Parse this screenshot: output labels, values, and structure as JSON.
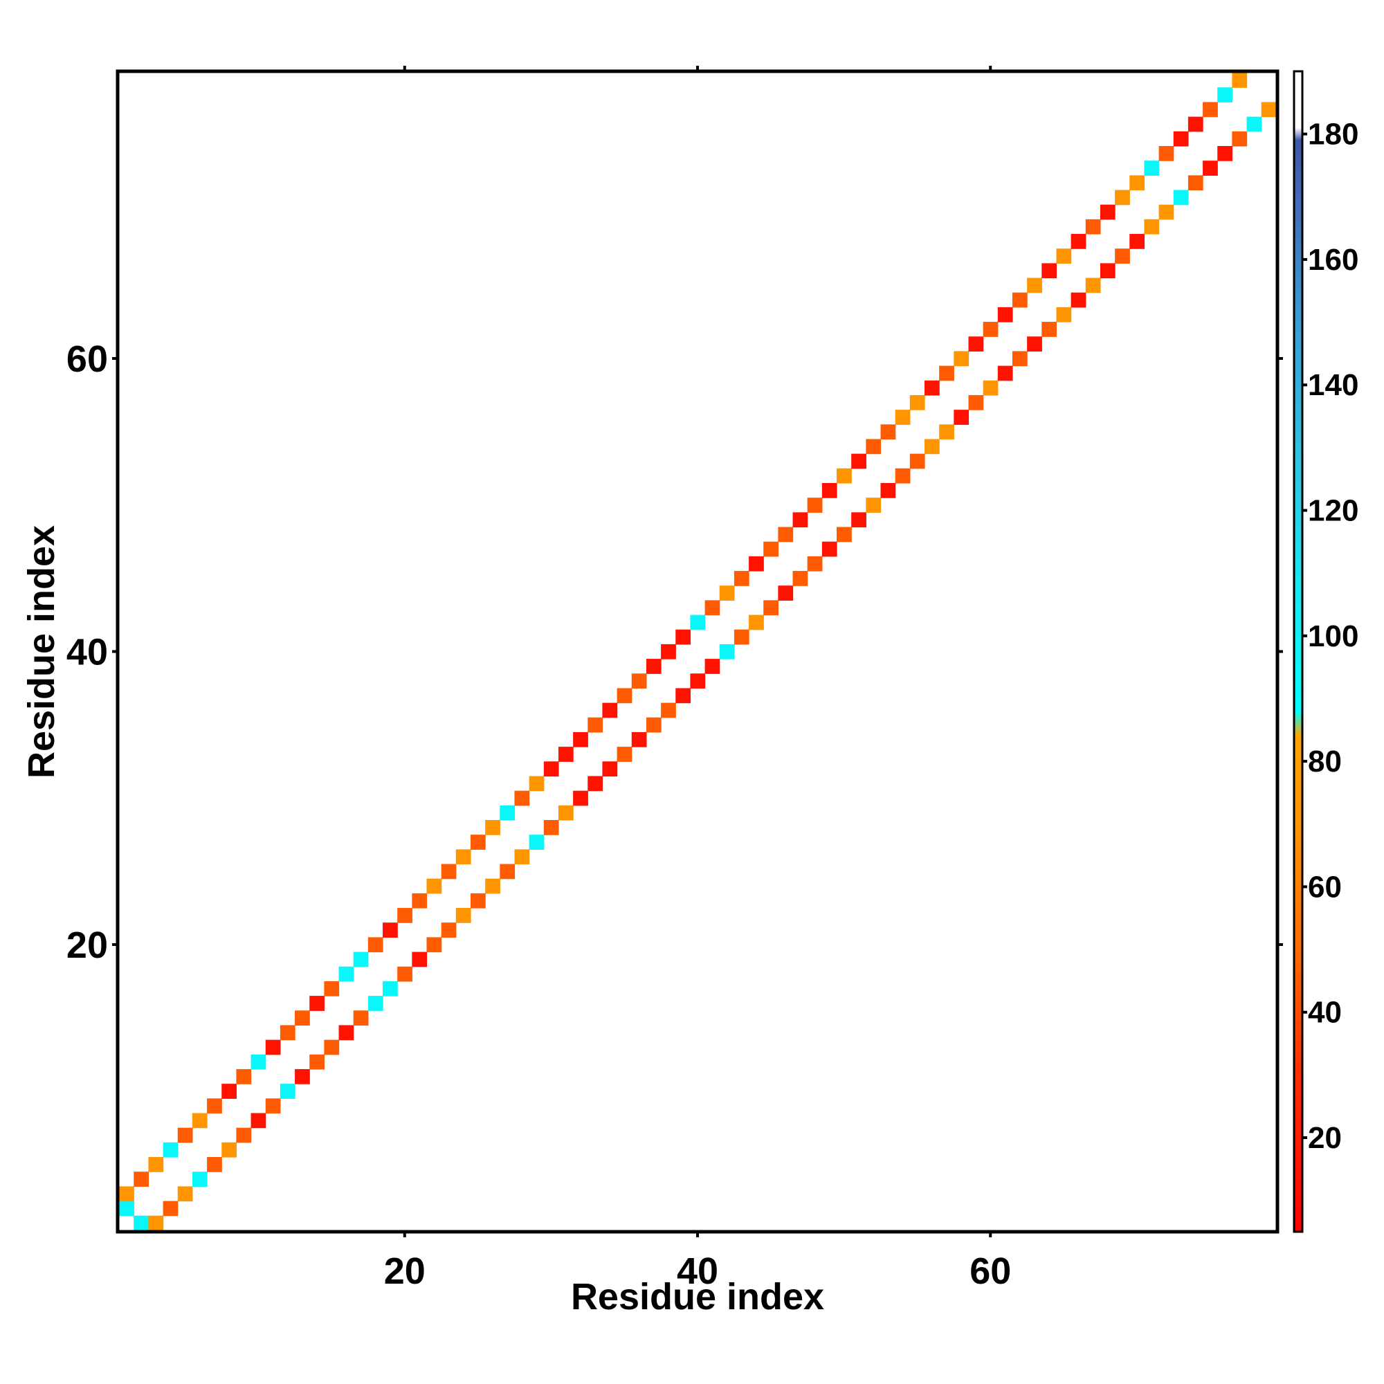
{
  "chart_data": {
    "type": "heatmap",
    "title": "",
    "xlabel": "Residue index",
    "ylabel": "Residue index",
    "xlim": [
      1,
      79
    ],
    "ylim": [
      1,
      79
    ],
    "xticks": [
      20,
      40,
      60
    ],
    "yticks": [
      20,
      40,
      60
    ],
    "grid": false,
    "colorbar": {
      "position": "right",
      "range": [
        5,
        190
      ],
      "ticks": [
        20,
        40,
        60,
        80,
        100,
        120,
        140,
        160,
        180
      ],
      "stops": [
        {
          "value": 5,
          "color": "#ff0000"
        },
        {
          "value": 30,
          "color": "#ff2d00"
        },
        {
          "value": 50,
          "color": "#ff6a00"
        },
        {
          "value": 70,
          "color": "#ff9500"
        },
        {
          "value": 84,
          "color": "#ffa200"
        },
        {
          "value": 88,
          "color": "#00ffff"
        },
        {
          "value": 110,
          "color": "#1fe3ec"
        },
        {
          "value": 130,
          "color": "#30c0e0"
        },
        {
          "value": 150,
          "color": "#3a9dd3"
        },
        {
          "value": 170,
          "color": "#4468b8"
        },
        {
          "value": 179,
          "color": "#3f57a8"
        },
        {
          "value": 181,
          "color": "#ffffff"
        },
        {
          "value": 190,
          "color": "#ffffff"
        }
      ]
    },
    "band": {
      "description_values": "Values shown as colors for off-diagonal residue pairs; diagonal empty",
      "value_classes": {
        "red": 15,
        "darkorange": 45,
        "orange": 70,
        "cyan": 95,
        "lightblue": 125,
        "blue": 140
      }
    },
    "cells": [
      [
        1,
        2,
        95
      ],
      [
        1,
        3,
        70
      ],
      [
        2,
        1,
        95
      ],
      [
        2,
        4,
        45
      ],
      [
        3,
        1,
        70
      ],
      [
        3,
        5,
        70
      ],
      [
        4,
        2,
        45
      ],
      [
        4,
        6,
        95
      ],
      [
        5,
        3,
        70
      ],
      [
        5,
        7,
        45
      ],
      [
        6,
        4,
        95
      ],
      [
        6,
        8,
        70
      ],
      [
        7,
        5,
        45
      ],
      [
        7,
        9,
        45
      ],
      [
        8,
        6,
        70
      ],
      [
        8,
        10,
        15
      ],
      [
        9,
        7,
        45
      ],
      [
        9,
        11,
        45
      ],
      [
        10,
        8,
        15
      ],
      [
        10,
        12,
        95
      ],
      [
        11,
        9,
        45
      ],
      [
        11,
        13,
        15
      ],
      [
        12,
        10,
        95
      ],
      [
        12,
        14,
        45
      ],
      [
        13,
        11,
        15
      ],
      [
        13,
        15,
        45
      ],
      [
        14,
        12,
        45
      ],
      [
        14,
        16,
        15
      ],
      [
        15,
        13,
        45
      ],
      [
        15,
        17,
        45
      ],
      [
        16,
        14,
        15
      ],
      [
        16,
        18,
        95
      ],
      [
        17,
        15,
        45
      ],
      [
        17,
        19,
        95
      ],
      [
        18,
        16,
        95
      ],
      [
        18,
        20,
        45
      ],
      [
        19,
        17,
        95
      ],
      [
        19,
        21,
        15
      ],
      [
        20,
        18,
        45
      ],
      [
        20,
        22,
        45
      ],
      [
        21,
        19,
        15
      ],
      [
        21,
        23,
        45
      ],
      [
        22,
        20,
        45
      ],
      [
        22,
        24,
        70
      ],
      [
        23,
        21,
        45
      ],
      [
        23,
        25,
        45
      ],
      [
        24,
        22,
        70
      ],
      [
        24,
        26,
        70
      ],
      [
        25,
        23,
        45
      ],
      [
        25,
        27,
        45
      ],
      [
        26,
        24,
        70
      ],
      [
        26,
        28,
        70
      ],
      [
        27,
        25,
        45
      ],
      [
        27,
        29,
        95
      ],
      [
        28,
        26,
        70
      ],
      [
        28,
        30,
        45
      ],
      [
        29,
        27,
        95
      ],
      [
        29,
        31,
        70
      ],
      [
        30,
        28,
        45
      ],
      [
        30,
        32,
        15
      ],
      [
        31,
        29,
        70
      ],
      [
        31,
        33,
        15
      ],
      [
        32,
        30,
        15
      ],
      [
        32,
        34,
        15
      ],
      [
        33,
        31,
        15
      ],
      [
        33,
        35,
        45
      ],
      [
        34,
        32,
        15
      ],
      [
        34,
        36,
        15
      ],
      [
        35,
        33,
        45
      ],
      [
        35,
        37,
        45
      ],
      [
        36,
        34,
        15
      ],
      [
        36,
        38,
        45
      ],
      [
        37,
        35,
        45
      ],
      [
        37,
        39,
        15
      ],
      [
        38,
        36,
        45
      ],
      [
        38,
        40,
        15
      ],
      [
        39,
        37,
        15
      ],
      [
        39,
        41,
        15
      ],
      [
        40,
        38,
        15
      ],
      [
        40,
        42,
        95
      ],
      [
        41,
        39,
        15
      ],
      [
        41,
        43,
        45
      ],
      [
        42,
        40,
        95
      ],
      [
        42,
        44,
        70
      ],
      [
        43,
        41,
        45
      ],
      [
        43,
        45,
        45
      ],
      [
        44,
        42,
        70
      ],
      [
        44,
        46,
        15
      ],
      [
        45,
        43,
        45
      ],
      [
        45,
        47,
        45
      ],
      [
        46,
        44,
        15
      ],
      [
        46,
        48,
        45
      ],
      [
        47,
        45,
        45
      ],
      [
        47,
        49,
        15
      ],
      [
        48,
        46,
        45
      ],
      [
        48,
        50,
        45
      ],
      [
        49,
        47,
        15
      ],
      [
        49,
        51,
        15
      ],
      [
        50,
        48,
        45
      ],
      [
        50,
        52,
        70
      ],
      [
        51,
        49,
        15
      ],
      [
        51,
        53,
        15
      ],
      [
        52,
        50,
        70
      ],
      [
        52,
        54,
        45
      ],
      [
        53,
        51,
        15
      ],
      [
        53,
        55,
        45
      ],
      [
        54,
        52,
        45
      ],
      [
        54,
        56,
        70
      ],
      [
        55,
        53,
        45
      ],
      [
        55,
        57,
        70
      ],
      [
        56,
        54,
        70
      ],
      [
        56,
        58,
        15
      ],
      [
        57,
        55,
        70
      ],
      [
        57,
        59,
        45
      ],
      [
        58,
        56,
        15
      ],
      [
        58,
        60,
        70
      ],
      [
        59,
        57,
        45
      ],
      [
        59,
        61,
        15
      ],
      [
        60,
        58,
        70
      ],
      [
        60,
        62,
        45
      ],
      [
        61,
        59,
        15
      ],
      [
        61,
        63,
        15
      ],
      [
        62,
        60,
        45
      ],
      [
        62,
        64,
        45
      ],
      [
        63,
        61,
        15
      ],
      [
        63,
        65,
        70
      ],
      [
        64,
        62,
        45
      ],
      [
        64,
        66,
        15
      ],
      [
        65,
        63,
        70
      ],
      [
        65,
        67,
        70
      ],
      [
        66,
        64,
        15
      ],
      [
        66,
        68,
        15
      ],
      [
        67,
        65,
        70
      ],
      [
        67,
        69,
        45
      ],
      [
        68,
        66,
        15
      ],
      [
        68,
        70,
        15
      ],
      [
        69,
        67,
        45
      ],
      [
        69,
        71,
        70
      ],
      [
        70,
        68,
        15
      ],
      [
        70,
        72,
        70
      ],
      [
        71,
        69,
        70
      ],
      [
        71,
        73,
        95
      ],
      [
        72,
        70,
        70
      ],
      [
        72,
        74,
        45
      ],
      [
        73,
        71,
        95
      ],
      [
        73,
        75,
        15
      ],
      [
        74,
        72,
        45
      ],
      [
        74,
        76,
        15
      ],
      [
        75,
        73,
        15
      ],
      [
        75,
        77,
        45
      ],
      [
        76,
        74,
        15
      ],
      [
        76,
        78,
        95
      ],
      [
        77,
        75,
        45
      ],
      [
        77,
        79,
        70
      ],
      [
        78,
        76,
        95
      ],
      [
        79,
        77,
        70
      ]
    ]
  }
}
